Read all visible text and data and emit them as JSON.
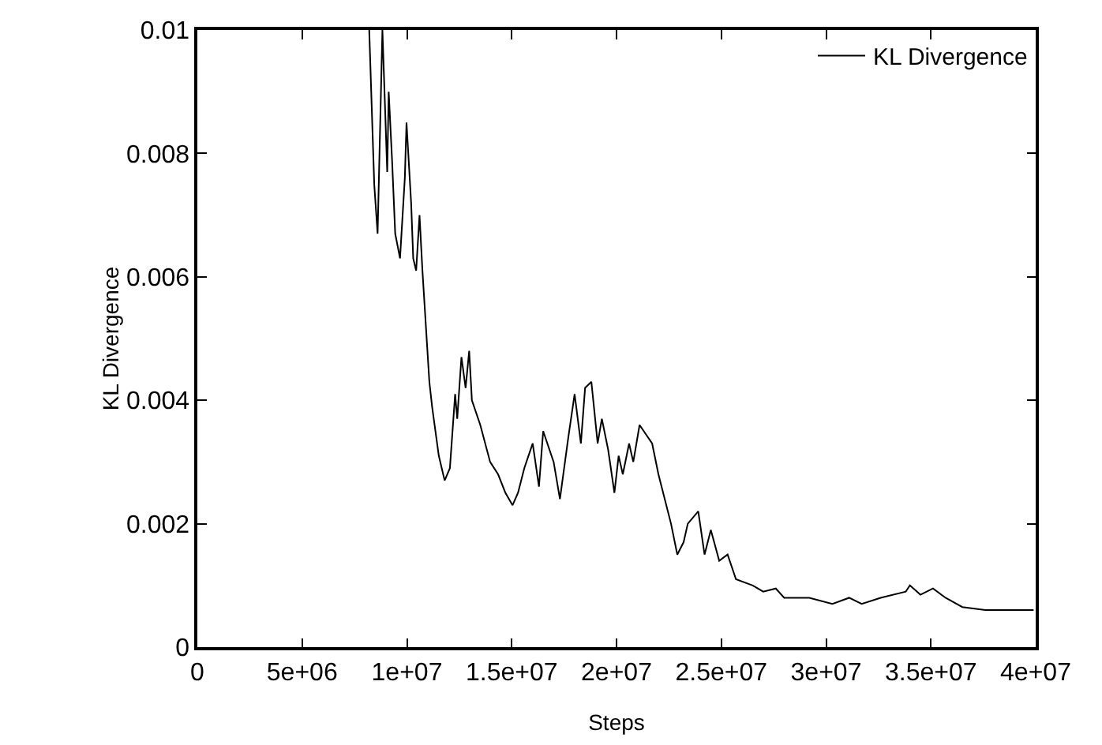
{
  "chart_data": {
    "type": "line",
    "xlabel": "Steps",
    "ylabel": "KL Divergence",
    "xlim": [
      0,
      40000000
    ],
    "xticks": [
      0,
      {
        "value": 5000000,
        "label": "5e+06"
      },
      {
        "value": 10000000,
        "label": "1e+07"
      },
      {
        "value": 15000000,
        "label": "1.5e+07"
      },
      {
        "value": 20000000,
        "label": "2e+07"
      },
      {
        "value": 25000000,
        "label": "2.5e+07"
      },
      {
        "value": 30000000,
        "label": "3e+07"
      },
      {
        "value": 35000000,
        "label": "3.5e+07"
      },
      {
        "value": 40000000,
        "label": "4e+07"
      }
    ],
    "ylim": [
      0,
      0.01
    ],
    "yticks": [
      0,
      0.002,
      0.004,
      0.006,
      0.008,
      0.01
    ],
    "grid": false,
    "legend": "top right",
    "marker": "none",
    "line_style": "solid",
    "series": [
      {
        "name": "KL Divergence",
        "color": "#000000",
        "x": [
          8200000,
          8440000,
          8600000,
          8830000,
          9060000,
          9130000,
          9290000,
          9440000,
          9670000,
          9900000,
          9980000,
          10200000,
          10300000,
          10440000,
          10600000,
          10740000,
          11070000,
          11200000,
          11520000,
          11800000,
          12050000,
          12300000,
          12400000,
          12600000,
          12800000,
          12970000,
          13100000,
          13500000,
          13970000,
          14350000,
          14700000,
          15040000,
          15300000,
          15600000,
          16000000,
          16300000,
          16500000,
          17000000,
          17300000,
          17700000,
          18000000,
          18300000,
          18500000,
          18800000,
          19100000,
          19300000,
          19600000,
          19900000,
          20100000,
          20300000,
          20600000,
          20800000,
          21100000,
          21700000,
          22000000,
          22600000,
          22900000,
          23200000,
          23400000,
          23900000,
          24200000,
          24500000,
          24900000,
          25300000,
          25700000,
          26500000,
          27000000,
          27600000,
          28000000,
          29200000,
          30300000,
          31100000,
          31700000,
          32600000,
          33800000,
          34000000,
          34500000,
          35100000,
          35700000,
          36500000,
          37600000,
          38800000,
          39900000
        ],
        "values": [
          0.01,
          0.0075,
          0.0067,
          0.01,
          0.0077,
          0.009,
          0.0079,
          0.0067,
          0.0063,
          0.0076,
          0.0085,
          0.0072,
          0.0063,
          0.0061,
          0.007,
          0.0061,
          0.0043,
          0.0039,
          0.0031,
          0.0027,
          0.0029,
          0.0041,
          0.0037,
          0.0047,
          0.0042,
          0.0048,
          0.004,
          0.0036,
          0.003,
          0.0028,
          0.0025,
          0.0023,
          0.0025,
          0.0029,
          0.0033,
          0.0026,
          0.0035,
          0.003,
          0.0024,
          0.0034,
          0.0041,
          0.0033,
          0.0042,
          0.0043,
          0.0033,
          0.0037,
          0.0032,
          0.0025,
          0.0031,
          0.0028,
          0.0033,
          0.003,
          0.0036,
          0.0033,
          0.0028,
          0.002,
          0.0015,
          0.0017,
          0.002,
          0.0022,
          0.0015,
          0.0019,
          0.0014,
          0.0015,
          0.0011,
          0.001,
          0.0009,
          0.00095,
          0.0008,
          0.0008,
          0.0007,
          0.0008,
          0.0007,
          0.0008,
          0.0009,
          0.001,
          0.00085,
          0.00095,
          0.0008,
          0.00065,
          0.0006,
          0.0006,
          0.0006
        ]
      }
    ]
  }
}
